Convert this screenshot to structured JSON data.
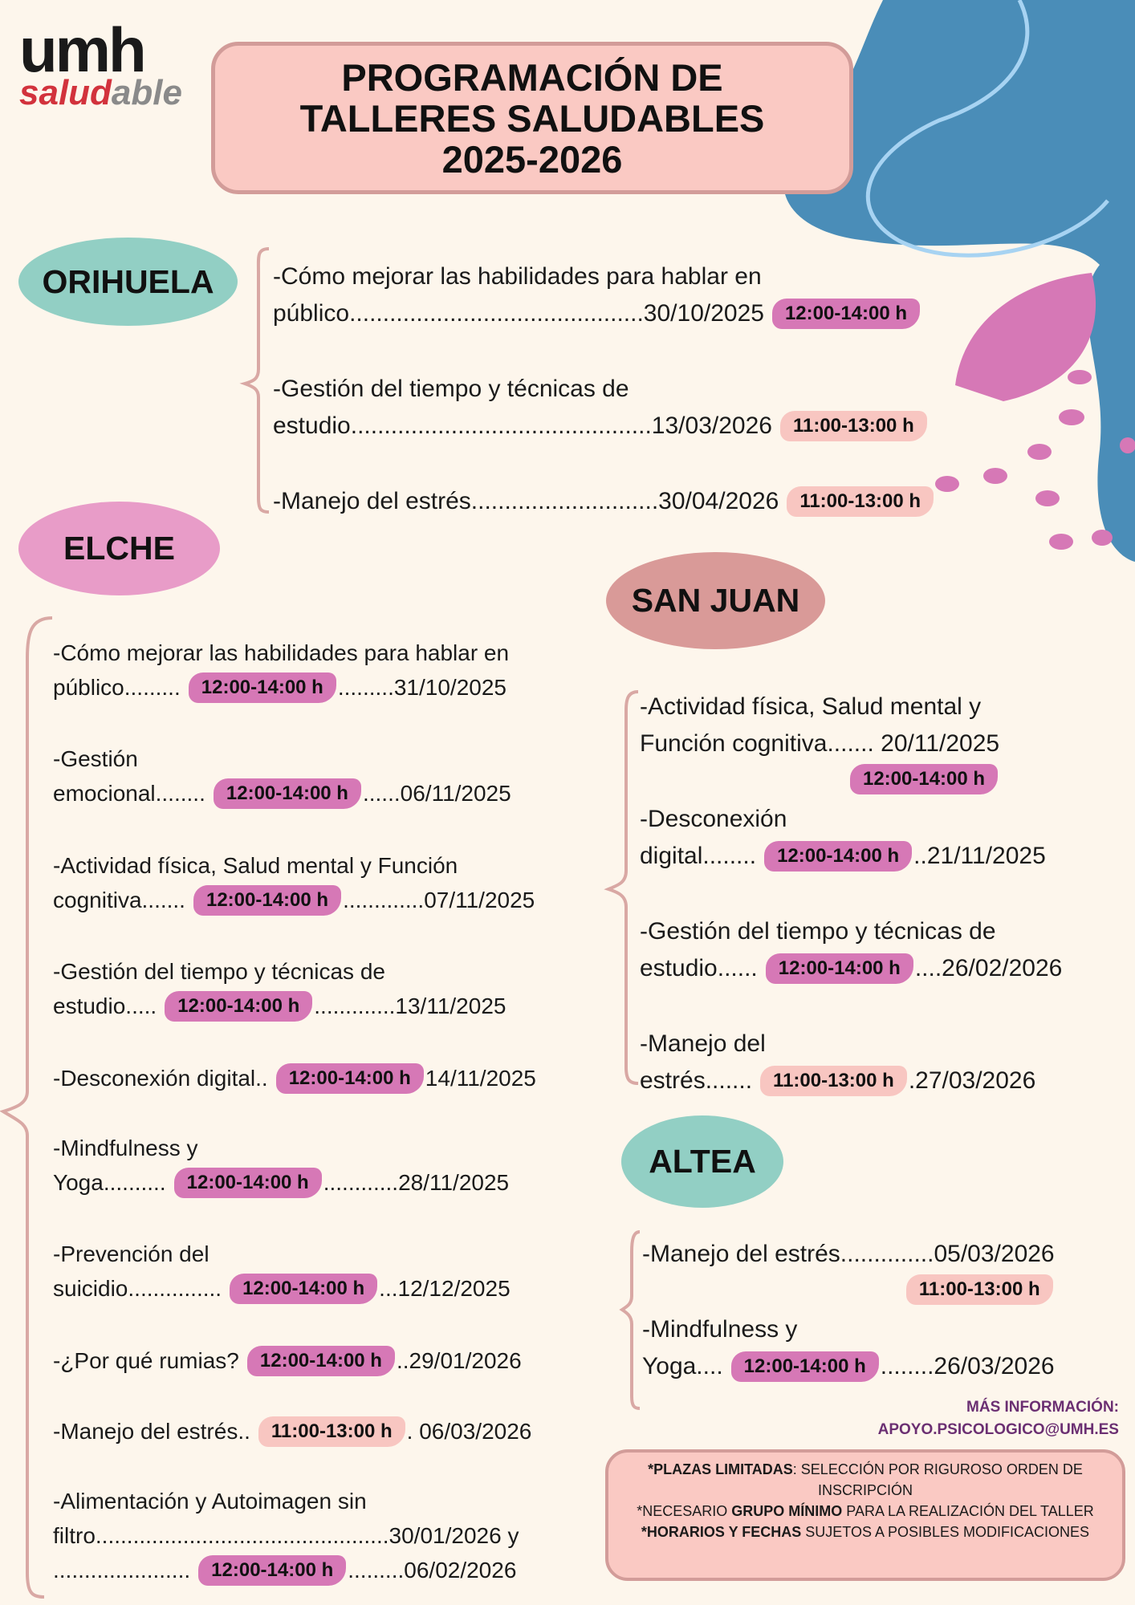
{
  "logo": {
    "top": "umh",
    "bottom_a": "salud",
    "bottom_b": "able"
  },
  "title": {
    "lines": [
      "PROGRAMACIÓN DE",
      "TALLERES SALUDABLES",
      "2025-2026"
    ]
  },
  "sections": [
    {
      "name": "ORIHUELA",
      "color": "#92cfc4",
      "workshops": [
        {
          "lines": [
            "-Cómo mejorar las habilidades para hablar en",
            "público............................................30/10/2025"
          ],
          "time": "12:00-14:00 h",
          "color": "#d678b6"
        },
        {
          "lines": [
            "-Gestión del tiempo y técnicas de",
            "estudio.............................................13/03/2026"
          ],
          "time": "11:00-13:00 h",
          "color": "#f8c6c1"
        },
        {
          "lines": [
            "-Manejo del estrés............................30/04/2026"
          ],
          "time": "11:00-13:00 h",
          "color": "#f8c6c1"
        }
      ]
    },
    {
      "name": "ELCHE",
      "color": "#e89cc8",
      "workshops": [
        {
          "lines": [
            "-Cómo mejorar las habilidades para hablar en",
            "público........."
          ],
          "time": "12:00-14:00 h",
          "tail": ".........31/10/2025",
          "color": "#d678b6"
        },
        {
          "lines": [
            "-Gestión",
            "emocional........"
          ],
          "time": "12:00-14:00 h",
          "tail": "......06/11/2025",
          "color": "#d678b6"
        },
        {
          "lines": [
            "-Actividad física, Salud mental y Función",
            "cognitiva......."
          ],
          "time": "12:00-14:00 h",
          "tail": ".............07/11/2025",
          "color": "#d678b6"
        },
        {
          "lines": [
            "-Gestión del tiempo y técnicas de",
            "estudio....."
          ],
          "time": "12:00-14:00 h",
          "tail": ".............13/11/2025",
          "color": "#d678b6"
        },
        {
          "lines": [
            "-Desconexión digital.."
          ],
          "time": "12:00-14:00 h",
          "tail": "14/11/2025",
          "color": "#d678b6"
        },
        {
          "lines": [
            "-Mindfulness y",
            "Yoga.........."
          ],
          "time": "12:00-14:00 h",
          "tail": "............28/11/2025",
          "color": "#d678b6"
        },
        {
          "lines": [
            "-Prevención del",
            "suicidio..............."
          ],
          "time": "12:00-14:00 h",
          "tail": "...12/12/2025",
          "color": "#d678b6"
        },
        {
          "lines": [
            "-¿Por qué rumias?"
          ],
          "time": "12:00-14:00 h",
          "tail": "..29/01/2026",
          "color": "#d678b6"
        },
        {
          "lines": [
            "-Manejo del estrés.."
          ],
          "time": "11:00-13:00 h",
          "tail": ". 06/03/2026",
          "color": "#f8c6c1"
        },
        {
          "lines": [
            "-Alimentación y Autoimagen sin",
            "filtro...............................................30/01/2026 y",
            "......................"
          ],
          "time": "12:00-14:00 h",
          "tail": ".........06/02/2026",
          "color": "#d678b6"
        }
      ]
    },
    {
      "name": "SAN JUAN",
      "color": "#d99a98",
      "workshops": [
        {
          "lines": [
            "-Actividad física, Salud mental y",
            "Función cognitiva....... 20/11/2025"
          ],
          "time": "12:00-14:00 h",
          "color": "#d678b6"
        },
        {
          "lines": [
            "-Desconexión",
            "digital........"
          ],
          "time": "12:00-14:00 h",
          "tail": "..21/11/2025",
          "color": "#d678b6"
        },
        {
          "lines": [
            "-Gestión del tiempo y técnicas de",
            "estudio......"
          ],
          "time": "12:00-14:00 h",
          "tail": "....26/02/2026",
          "color": "#d678b6"
        },
        {
          "lines": [
            "-Manejo del",
            "estrés......."
          ],
          "time": "11:00-13:00 h",
          "tail": ".27/03/2026",
          "color": "#f8c6c1"
        }
      ]
    },
    {
      "name": "ALTEA",
      "color": "#92cfc4",
      "workshops": [
        {
          "lines": [
            "-Manejo del estrés..............05/03/2026"
          ],
          "time": "11:00-13:00 h",
          "color": "#f8c6c1"
        },
        {
          "lines": [
            "-Mindfulness y",
            "Yoga...."
          ],
          "time": "12:00-14:00 h",
          "tail": "........26/03/2026",
          "color": "#d678b6"
        }
      ]
    }
  ],
  "info": {
    "label": "MÁS INFORMACIÓN:",
    "email": "APOYO.PSICOLOGICO@UMH.ES"
  },
  "notes": [
    [
      {
        "text": "*PLAZAS LIMITADAS",
        "bold": true
      },
      {
        "text": ": SELECCIÓN POR RIGUROSO ORDEN DE INSCRIPCIÓN",
        "bold": false
      }
    ],
    [
      {
        "text": "*NECESARIO ",
        "bold": false
      },
      {
        "text": "GRUPO MÍNIMO",
        "bold": true
      },
      {
        "text": " PARA LA REALIZACIÓN DEL TALLER",
        "bold": false
      }
    ],
    [
      {
        "text": "*HORARIOS Y FECHAS",
        "bold": true
      },
      {
        "text": " SUJETOS A POSIBLES MODIFICACIONES",
        "bold": false
      }
    ]
  ]
}
